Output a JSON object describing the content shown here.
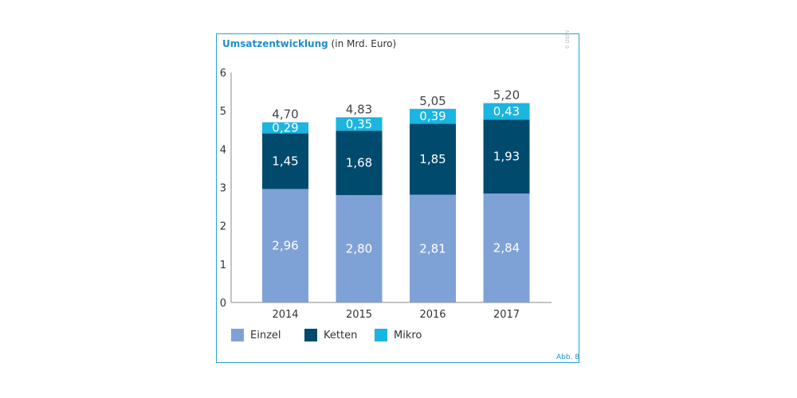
{
  "title": "Umsatzentwicklung",
  "subtitle": "(in Mrd. Euro)",
  "credit": "© DSSV",
  "figure_number": "Abb. 8",
  "chart_data": {
    "type": "bar",
    "stacked": true,
    "categories": [
      "2014",
      "2015",
      "2016",
      "2017"
    ],
    "series": [
      {
        "name": "Einzel",
        "values": [
          2.96,
          2.8,
          2.81,
          2.84
        ],
        "labels": [
          "2,96",
          "2,80",
          "2,81",
          "2,84"
        ],
        "color": "#7fa2d6"
      },
      {
        "name": "Ketten",
        "values": [
          1.45,
          1.68,
          1.85,
          1.93
        ],
        "labels": [
          "1,45",
          "1,68",
          "1,85",
          "1,93"
        ],
        "color": "#004a6e"
      },
      {
        "name": "Mikro",
        "values": [
          0.29,
          0.35,
          0.39,
          0.43
        ],
        "labels": [
          "0,29",
          "0,35",
          "0,39",
          "0,43"
        ],
        "color": "#1ab5e0"
      }
    ],
    "totals": [
      "4,70",
      "4,83",
      "5,05",
      "5,20"
    ],
    "ylim": [
      0,
      6
    ],
    "yticks": [
      "0",
      "1",
      "2",
      "3",
      "4",
      "5",
      "6"
    ],
    "legend_position": "bottom-left",
    "grid": false
  }
}
